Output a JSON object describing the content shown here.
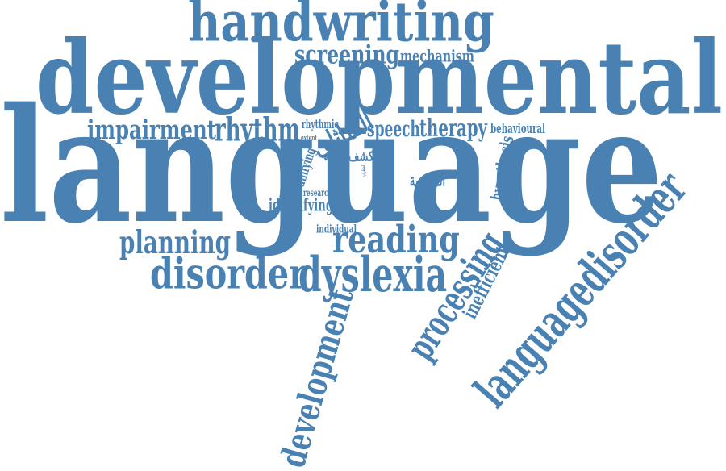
{
  "cloud": {
    "color": "#4a81b3",
    "words": [
      "language",
      "developmental",
      "handwriting",
      "screening",
      "mechanism",
      "impairment",
      "rhythm",
      "rhythmic",
      "التماثلي",
      "extent",
      "speech",
      "therapy",
      "behavioural",
      "hypothesis",
      "unifying",
      "الكشف",
      "اضطراب",
      "المدرسة",
      "research",
      "identifying",
      "planning",
      "individual",
      "reading",
      "disorder",
      "dyslexia",
      "languagedisorder",
      "processing",
      "inefficient",
      "development"
    ]
  }
}
